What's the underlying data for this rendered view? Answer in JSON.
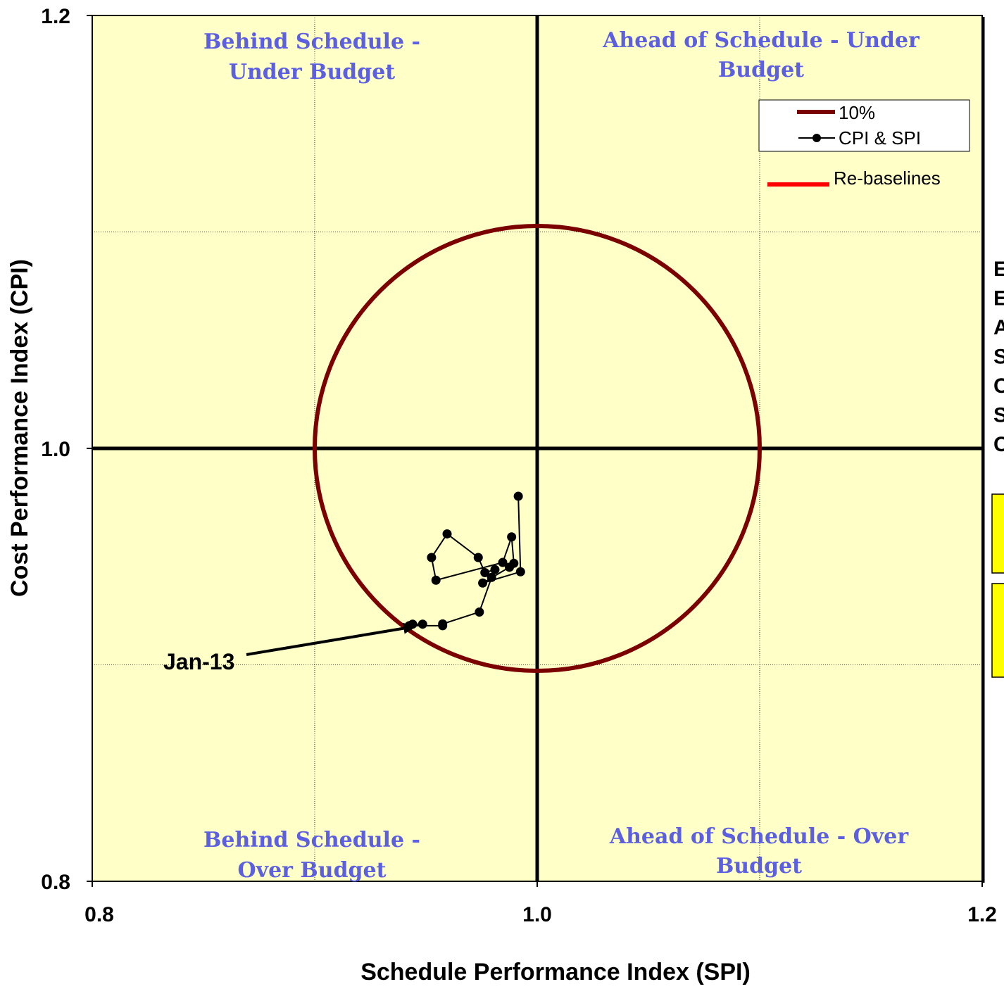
{
  "chart_data": {
    "type": "scatter",
    "xlabel": "Schedule Performance Index (SPI)",
    "ylabel": "Cost Performance Index (CPI)",
    "xlim": [
      0.8,
      1.2
    ],
    "ylim": [
      0.8,
      1.2
    ],
    "x_ticks": [
      "0.8",
      "1.0",
      "1.2"
    ],
    "y_ticks": [
      "0.8",
      "1.0",
      "1.2"
    ],
    "grid": true,
    "background_color": "#ffffc8",
    "quadrant_labels": {
      "top_left": [
        "Behind Schedule -",
        "Under Budget"
      ],
      "top_right": [
        "Ahead of Schedule - Under",
        "Budget"
      ],
      "bottom_left": [
        "Behind Schedule -",
        "Over Budget"
      ],
      "bottom_right": [
        "Ahead of Schedule - Over",
        "Budget"
      ]
    },
    "legend": {
      "placement": "top-right",
      "entries": [
        "10%",
        "CPI & SPI"
      ],
      "extra": "Re-baselines"
    },
    "series": [
      {
        "name": "10%",
        "kind": "circle",
        "center": [
          1.0,
          1.0
        ],
        "radius": 0.1,
        "color": "#7b0000"
      },
      {
        "name": "CPI & SPI",
        "kind": "line-markers",
        "color": "#000000",
        "x": [
          0.9485,
          0.944,
          0.9425,
          0.9575,
          0.9575,
          0.974,
          0.9795,
          0.981,
          0.9765,
          0.9735,
          0.9595,
          0.9525,
          0.9545,
          0.9845,
          0.9885,
          0.9895,
          0.9875,
          0.9755,
          0.9925,
          0.9915
        ],
        "y": [
          0.9188,
          0.9188,
          0.9181,
          0.9181,
          0.9189,
          0.9244,
          0.9404,
          0.944,
          0.9426,
          0.9496,
          0.9605,
          0.9496,
          0.9391,
          0.9473,
          0.9591,
          0.9469,
          0.9451,
          0.9378,
          0.943,
          0.9779
        ]
      }
    ],
    "annotations": [
      {
        "text": "Jan-13",
        "x": 0.9475,
        "y": 0.9188
      }
    ],
    "side_text_fragments": [
      "E",
      "E",
      "A",
      "S",
      "C",
      "S",
      "C"
    ]
  }
}
